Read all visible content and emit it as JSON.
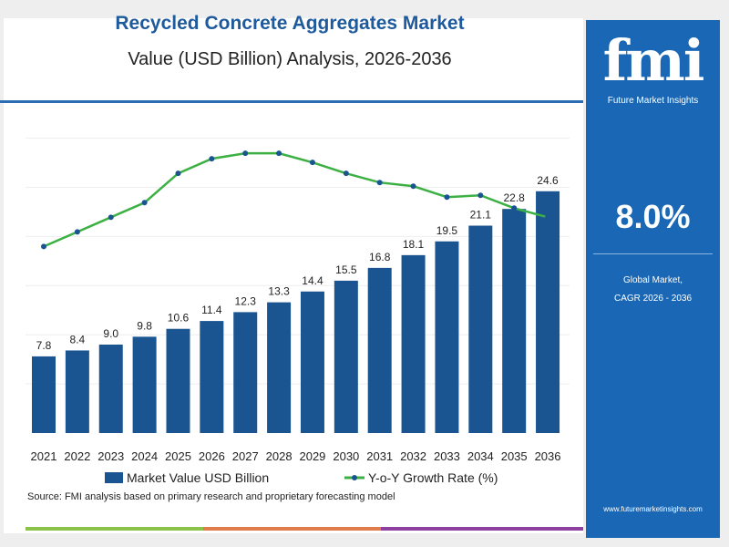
{
  "title": "Recycled Concrete Aggregates Market",
  "subtitle": "Value (USD Billion) Analysis, 2026-2036",
  "source": "Source: FMI analysis based on primary research and proprietary forecasting model",
  "panel": {
    "logo": "fmi",
    "logo_sub": "Future Market Insights",
    "cagr": "8.0%",
    "cagr_label_1": "Global Market,",
    "cagr_label_2": "CAGR 2026 - 2036",
    "url": "www.futuremarketinsights.com"
  },
  "colors": {
    "bar": "#1a5592",
    "line": "#3cb043",
    "panel": "#1967b5"
  },
  "chart_data": {
    "type": "bar",
    "categories": [
      "2021",
      "2022",
      "2023",
      "2024",
      "2025",
      "2026",
      "2027",
      "2028",
      "2029",
      "2030",
      "2031",
      "2032",
      "2033",
      "2034",
      "2035",
      "2036"
    ],
    "series": [
      {
        "name": "Market Value USD Billion",
        "type": "bar",
        "values": [
          7.8,
          8.4,
          9.0,
          9.8,
          10.6,
          11.4,
          12.3,
          13.3,
          14.4,
          15.5,
          16.8,
          18.1,
          19.5,
          21.1,
          22.8,
          24.6
        ],
        "labels": [
          "7.8",
          "8.4",
          "9.0",
          "9.8",
          "10.6",
          "11.4",
          "12.3",
          "13.3",
          "14.4",
          "15.5",
          "16.8",
          "18.1",
          "19.5",
          "21.1",
          "22.8",
          "24.6"
        ]
      },
      {
        "name": "Y-o-Y Growth Rate (%)",
        "type": "line",
        "values": [
          6.0,
          6.4,
          6.8,
          7.2,
          8.0,
          8.4,
          8.55,
          8.55,
          8.3,
          8.0,
          7.75,
          7.65,
          7.35,
          7.4,
          7.05,
          6.8
        ]
      }
    ],
    "ylim": [
      0,
      32
    ],
    "y2lim": [
      0.9,
      9.5
    ],
    "grid": true,
    "legend": "bottom"
  }
}
